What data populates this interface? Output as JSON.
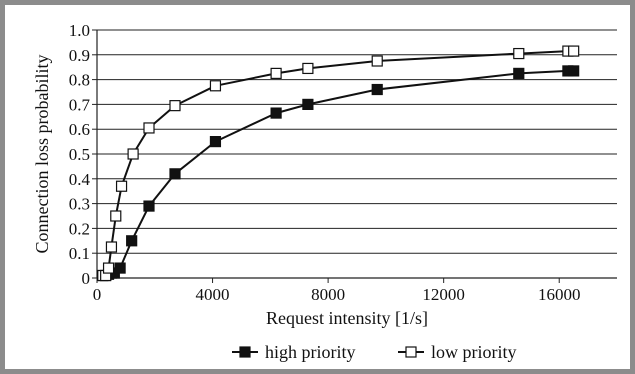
{
  "chart_data": {
    "type": "line",
    "title": "",
    "xlabel": "Request intensity [1/s]",
    "ylabel": "Connection loss probability",
    "xlim": [
      0,
      18000
    ],
    "ylim": [
      0,
      1.0
    ],
    "x_ticks": [
      0,
      4000,
      8000,
      12000,
      16000
    ],
    "x_tick_labels": [
      "0",
      "4000",
      "8000",
      "12000",
      "16000"
    ],
    "y_ticks": [
      0,
      0.1,
      0.2,
      0.3,
      0.4,
      0.5,
      0.6,
      0.7,
      0.8,
      0.9,
      1.0
    ],
    "y_tick_labels": [
      "0",
      "0.1",
      "0.2",
      "0.3",
      "0.4",
      "0.5",
      "0.6",
      "0.7",
      "0.8",
      "0.9",
      "1.0"
    ],
    "grid": "horizontal",
    "legend_position": "bottom",
    "series": [
      {
        "name": "high priority",
        "marker": "filled-square",
        "color": "#111111",
        "points": [
          [
            200,
            0.01
          ],
          [
            300,
            0.01
          ],
          [
            400,
            0.015
          ],
          [
            500,
            0.02
          ],
          [
            600,
            0.02
          ],
          [
            800,
            0.04
          ],
          [
            1200,
            0.15
          ],
          [
            1800,
            0.29
          ],
          [
            2700,
            0.42
          ],
          [
            4100,
            0.55
          ],
          [
            6200,
            0.665
          ],
          [
            7300,
            0.7
          ],
          [
            9700,
            0.76
          ],
          [
            14600,
            0.825
          ],
          [
            16300,
            0.835
          ],
          [
            16500,
            0.835
          ]
        ]
      },
      {
        "name": "low priority",
        "marker": "open-square",
        "color": "#111111",
        "points": [
          [
            200,
            0.01
          ],
          [
            300,
            0.01
          ],
          [
            400,
            0.04
          ],
          [
            500,
            0.125
          ],
          [
            650,
            0.25
          ],
          [
            850,
            0.37
          ],
          [
            1250,
            0.5
          ],
          [
            1800,
            0.605
          ],
          [
            2700,
            0.695
          ],
          [
            4100,
            0.775
          ],
          [
            6200,
            0.825
          ],
          [
            7300,
            0.845
          ],
          [
            9700,
            0.875
          ],
          [
            14600,
            0.905
          ],
          [
            16300,
            0.915
          ],
          [
            16500,
            0.915
          ]
        ]
      }
    ]
  }
}
